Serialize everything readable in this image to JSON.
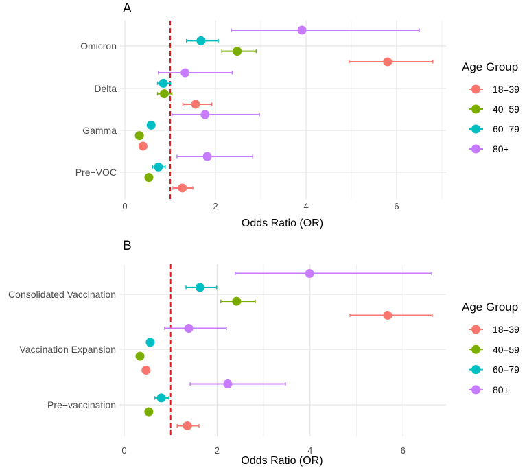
{
  "legend": {
    "title": "Age Group",
    "groups": [
      "18–39",
      "40–59",
      "60–79",
      "80+"
    ],
    "colors": [
      "#F8766D",
      "#7CAE00",
      "#00BFC4",
      "#C77CFF"
    ]
  },
  "reference_line": {
    "value": 1,
    "color": "#E41A1C",
    "style": "dashed"
  },
  "chart_data": [
    {
      "type": "forest",
      "panel_tag": "A",
      "xlabel": "Odds Ratio (OR)",
      "ylabel": "",
      "xticks": [
        0,
        2,
        4,
        6
      ],
      "xlim": [
        -0.1,
        7.1
      ],
      "grid": true,
      "legend_position": "right",
      "categories": [
        "Omicron",
        "Delta",
        "Gamma",
        "Pre−VOC"
      ],
      "series": [
        {
          "name": "18–39",
          "values": [
            5.8,
            1.56,
            0.4,
            1.27
          ],
          "lower": [
            4.95,
            1.28,
            0.4,
            1.06
          ],
          "upper": [
            6.8,
            1.92,
            0.4,
            1.5
          ]
        },
        {
          "name": "40–59",
          "values": [
            2.48,
            0.87,
            0.32,
            0.53
          ],
          "lower": [
            2.14,
            0.72,
            0.32,
            0.53
          ],
          "upper": [
            2.9,
            1.04,
            0.32,
            0.53
          ]
        },
        {
          "name": "60–79",
          "values": [
            1.68,
            0.85,
            0.58,
            0.74
          ],
          "lower": [
            1.36,
            0.72,
            0.55,
            0.61
          ],
          "upper": [
            2.06,
            1.01,
            0.62,
            0.89
          ]
        },
        {
          "name": "80+",
          "values": [
            3.91,
            1.33,
            1.77,
            1.82
          ],
          "lower": [
            2.35,
            0.74,
            1.04,
            1.15
          ],
          "upper": [
            6.5,
            2.37,
            2.97,
            2.82
          ]
        }
      ]
    },
    {
      "type": "forest",
      "panel_tag": "B",
      "xlabel": "Odds Ratio (OR)",
      "ylabel": "",
      "xticks": [
        0,
        2,
        4,
        6
      ],
      "xlim": [
        -0.1,
        6.93
      ],
      "grid": true,
      "legend_position": "right",
      "categories": [
        "Consolidated Vaccination",
        "Vaccination Expansion",
        "Pre−vaccination"
      ],
      "series": [
        {
          "name": "18–39",
          "values": [
            5.67,
            0.47,
            1.36
          ],
          "lower": [
            4.86,
            0.47,
            1.14
          ],
          "upper": [
            6.63,
            0.47,
            1.61
          ]
        },
        {
          "name": "40–59",
          "values": [
            2.42,
            0.34,
            0.53
          ],
          "lower": [
            2.08,
            0.34,
            0.53
          ],
          "upper": [
            2.82,
            0.34,
            0.53
          ]
        },
        {
          "name": "60–79",
          "values": [
            1.63,
            0.56,
            0.8
          ],
          "lower": [
            1.33,
            0.52,
            0.66
          ],
          "upper": [
            1.99,
            0.62,
            0.96
          ]
        },
        {
          "name": "80+",
          "values": [
            3.99,
            1.39,
            2.23
          ],
          "lower": [
            2.39,
            0.87,
            1.42
          ],
          "upper": [
            6.62,
            2.2,
            3.47
          ]
        }
      ]
    }
  ]
}
